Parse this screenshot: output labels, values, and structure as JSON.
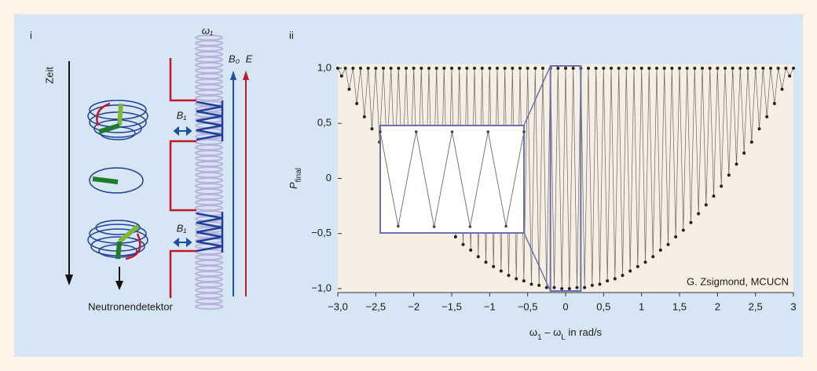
{
  "panels": {
    "left": "i",
    "right": "ii"
  },
  "diagram": {
    "time_label": "Zeit",
    "detector_label": "Neutronendetektor",
    "omega_label": "ω₁",
    "b0_label": "B₀",
    "e_label": "E",
    "b1_top_label": "B₁",
    "b1_bottom_label": "B₁"
  },
  "chart_data": {
    "type": "scatter",
    "y_label": {
      "main": "P",
      "sub": "final"
    },
    "x_label": [
      "ω",
      "1",
      " – ω",
      "L",
      " in rad/s"
    ],
    "credit": "G. Zsigmond, MCUCN",
    "xlim": [
      -3,
      3
    ],
    "ylim": [
      -1,
      1
    ],
    "xticks": [
      {
        "value": -3,
        "label": "−3,0"
      },
      {
        "value": -2.5,
        "label": "−2,5"
      },
      {
        "value": -2,
        "label": "−2"
      },
      {
        "value": -1.5,
        "label": "−1,5"
      },
      {
        "value": -1,
        "label": "−1"
      },
      {
        "value": -0.5,
        "label": "−0,5"
      },
      0,
      {
        "value": 0.5,
        "label": "0,5"
      },
      1,
      {
        "value": 1.5,
        "label": "1,5"
      },
      2,
      {
        "value": 2.5,
        "label": "2,5"
      },
      3
    ],
    "yticks": [
      {
        "value": 1,
        "label": "1,0"
      },
      {
        "value": 0.5,
        "label": "0,5"
      },
      0,
      {
        "value": -0.5,
        "label": "−0,5"
      },
      {
        "value": -1,
        "label": "−1,0"
      }
    ],
    "inset_xlim": [
      -0.2,
      0.2
    ],
    "color": "#222222",
    "x": [
      -3,
      -2.95,
      -2.9,
      -2.85,
      -2.8,
      -2.75,
      -2.7,
      -2.65,
      -2.6,
      -2.55,
      -2.5,
      -2.45,
      -2.4,
      -2.35,
      -2.3,
      -2.25,
      -2.2,
      -2.15,
      -2.1,
      -2.05,
      -2,
      -1.95,
      -1.9,
      -1.85,
      -1.8,
      -1.75,
      -1.7,
      -1.65,
      -1.6,
      -1.55,
      -1.5,
      -1.45,
      -1.4,
      -1.35,
      -1.3,
      -1.25,
      -1.2,
      -1.15,
      -1.1,
      -1.05,
      -1,
      -0.95,
      -0.9,
      -0.85,
      -0.8,
      -0.75,
      -0.7,
      -0.65,
      -0.6,
      -0.55,
      -0.5,
      -0.45,
      -0.4,
      -0.35,
      -0.3,
      -0.25,
      -0.2,
      -0.15,
      -0.1,
      -0.05,
      0,
      0.05,
      0.1,
      0.15,
      0.2,
      0.25,
      0.3,
      0.35,
      0.4,
      0.45,
      0.5,
      0.55,
      0.6,
      0.65,
      0.7,
      0.75,
      0.8,
      0.85,
      0.9,
      0.95,
      1,
      1.05,
      1.1,
      1.15,
      1.2,
      1.25,
      1.3,
      1.35,
      1.4,
      1.45,
      1.5,
      1.55,
      1.6,
      1.65,
      1.7,
      1.75,
      1.8,
      1.85,
      1.9,
      1.95,
      2,
      2.05,
      2.1,
      2.15,
      2.2,
      2.25,
      2.3,
      2.35,
      2.4,
      2.45,
      2.5,
      2.55,
      2.6,
      2.65,
      2.7,
      2.75,
      2.8,
      2.85,
      2.9,
      2.95,
      3
    ],
    "values": [
      1,
      0.93,
      1,
      0.81,
      1,
      0.68,
      1,
      0.56,
      1,
      0.45,
      1,
      0.33,
      1,
      0.23,
      1,
      0.13,
      1,
      0.03,
      1,
      -0.07,
      1,
      -0.16,
      1,
      -0.24,
      1,
      -0.32,
      1,
      -0.4,
      1,
      -0.47,
      1,
      -0.53,
      1,
      -0.6,
      1,
      -0.65,
      1,
      -0.71,
      1,
      -0.76,
      1,
      -0.8,
      1,
      -0.84,
      1,
      -0.88,
      1,
      -0.91,
      1,
      -0.93,
      1,
      -0.96,
      1,
      -0.97,
      1,
      -0.99,
      1,
      -0.99,
      1,
      -1,
      1,
      -1,
      1,
      -0.99,
      1,
      -0.99,
      1,
      -0.97,
      1,
      -0.96,
      1,
      -0.93,
      1,
      -0.91,
      1,
      -0.88,
      1,
      -0.84,
      1,
      -0.8,
      1,
      -0.76,
      1,
      -0.71,
      1,
      -0.65,
      1,
      -0.6,
      1,
      -0.53,
      1,
      -0.47,
      1,
      -0.4,
      1,
      -0.32,
      1,
      -0.24,
      1,
      -0.16,
      1,
      -0.07,
      1,
      0.03,
      1,
      0.13,
      1,
      0.23,
      1,
      0.33,
      1,
      0.45,
      1,
      0.56,
      1,
      0.68,
      1,
      0.81,
      1,
      0.93,
      1
    ]
  }
}
